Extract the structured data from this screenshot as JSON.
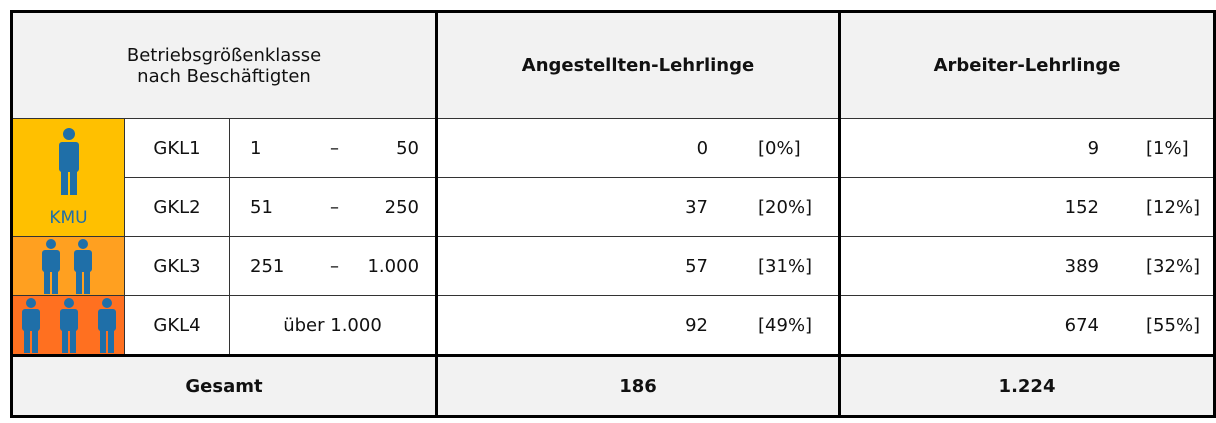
{
  "header": {
    "size_class": [
      "Betriebsgrößenklasse",
      "nach Beschäftigten"
    ],
    "col_a": "Angestellten-Lehrlinge",
    "col_b": "Arbeiter-Lehrlinge"
  },
  "kmu_label": "KMU",
  "rows": [
    {
      "class": "GKL1",
      "from": "1",
      "dash": "–",
      "to": "50",
      "a": "0",
      "a_pct": "[0%]",
      "b": "9",
      "b_pct": "[1%]"
    },
    {
      "class": "GKL2",
      "from": "51",
      "dash": "–",
      "to": "250",
      "a": "37",
      "a_pct": "[20%]",
      "b": "152",
      "b_pct": "[12%]"
    },
    {
      "class": "GKL3",
      "from": "251",
      "dash": "–",
      "to": "1.000",
      "a": "57",
      "a_pct": "[31%]",
      "b": "389",
      "b_pct": "[32%]"
    },
    {
      "class": "GKL4",
      "range": "über 1.000",
      "a": "92",
      "a_pct": "[49%]",
      "b": "674",
      "b_pct": "[55%]"
    }
  ],
  "total": {
    "label": "Gesamt",
    "a": "186",
    "b": "1.224"
  }
}
